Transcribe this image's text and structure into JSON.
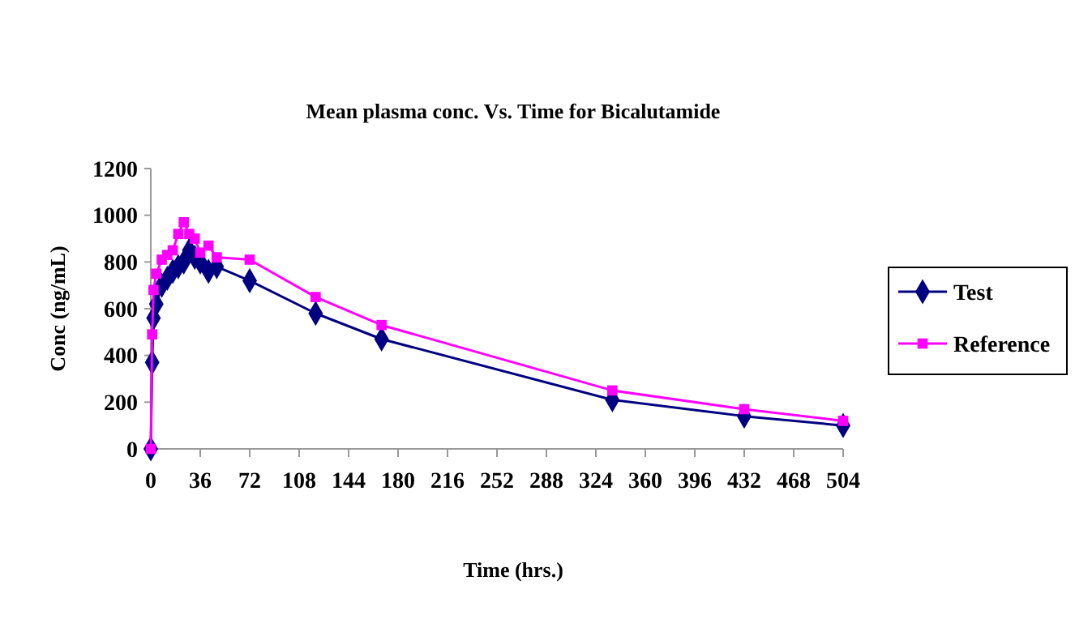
{
  "chart_data": {
    "type": "line",
    "title": "Mean plasma conc. Vs. Time for Bicalutamide",
    "xlabel": "Time (hrs.)",
    "ylabel": "Conc (ng/mL)",
    "xlim": [
      0,
      504
    ],
    "xticks": [
      0,
      36,
      72,
      108,
      144,
      180,
      216,
      252,
      288,
      324,
      360,
      396,
      432,
      468,
      504
    ],
    "ylim": [
      0,
      1200
    ],
    "yticks": [
      0,
      200,
      400,
      600,
      800,
      1000,
      1200
    ],
    "grid": false,
    "legend": "right",
    "series": [
      {
        "name": "Test",
        "color": "#000080",
        "marker": "diamond",
        "x": [
          0,
          1,
          2,
          4,
          8,
          12,
          16,
          20,
          24,
          28,
          32,
          36,
          42,
          48,
          72,
          120,
          168,
          336,
          432,
          504
        ],
        "values": [
          0,
          370,
          560,
          620,
          700,
          730,
          760,
          780,
          800,
          850,
          820,
          800,
          760,
          780,
          720,
          580,
          470,
          210,
          140,
          100
        ]
      },
      {
        "name": "Reference",
        "color": "#ff00ff",
        "marker": "square",
        "x": [
          0,
          1,
          2,
          4,
          8,
          12,
          16,
          20,
          24,
          28,
          32,
          36,
          42,
          48,
          72,
          120,
          168,
          336,
          432,
          504
        ],
        "values": [
          0,
          490,
          680,
          750,
          810,
          830,
          850,
          920,
          970,
          920,
          900,
          840,
          870,
          820,
          810,
          650,
          530,
          250,
          170,
          120
        ]
      }
    ]
  }
}
